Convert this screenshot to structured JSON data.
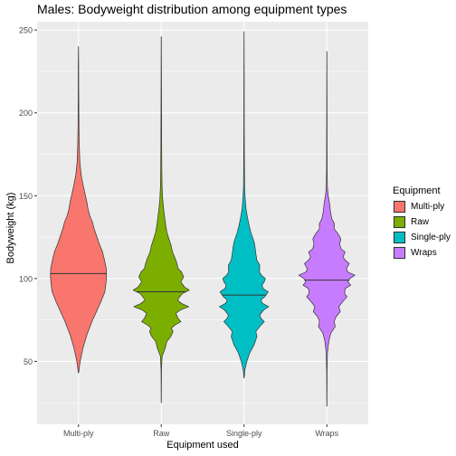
{
  "chart_data": {
    "type": "violin",
    "title": "Males: Bodyweight distribution among equipment types",
    "xlabel": "Equipment used",
    "ylabel": "Bodyweight (kg)",
    "categories": [
      "Multi-ply",
      "Raw",
      "Single-ply",
      "Wraps"
    ],
    "ylim": [
      12,
      255
    ],
    "yticks": [
      50,
      100,
      150,
      200,
      250
    ],
    "grid": true,
    "legend": {
      "title": "Equipment",
      "position": "right",
      "entries": [
        "Multi-ply",
        "Raw",
        "Single-ply",
        "Wraps"
      ]
    },
    "colors": [
      "#F8766D",
      "#7CAE00",
      "#00BFC4",
      "#C77CFF"
    ],
    "series": [
      {
        "name": "Multi-ply",
        "min": 43,
        "max": 240,
        "median": 103,
        "profile": [
          [
            43,
            0.004
          ],
          [
            50,
            0.06
          ],
          [
            58,
            0.16
          ],
          [
            66,
            0.3
          ],
          [
            74,
            0.48
          ],
          [
            80,
            0.64
          ],
          [
            86,
            0.8
          ],
          [
            92,
            0.94
          ],
          [
            97,
            0.98
          ],
          [
            101,
            1.0
          ],
          [
            106,
            0.99
          ],
          [
            111,
            0.93
          ],
          [
            116,
            0.86
          ],
          [
            121,
            0.74
          ],
          [
            126,
            0.64
          ],
          [
            130,
            0.56
          ],
          [
            134,
            0.5
          ],
          [
            138,
            0.4
          ],
          [
            142,
            0.34
          ],
          [
            146,
            0.3
          ],
          [
            150,
            0.25
          ],
          [
            156,
            0.17
          ],
          [
            162,
            0.1
          ],
          [
            170,
            0.05
          ],
          [
            180,
            0.028
          ],
          [
            190,
            0.018
          ],
          [
            200,
            0.012
          ],
          [
            215,
            0.008
          ],
          [
            230,
            0.006
          ],
          [
            240,
            0.002
          ]
        ]
      },
      {
        "name": "Raw",
        "min": 25,
        "max": 246,
        "median": 92,
        "profile": [
          [
            25,
            0.003
          ],
          [
            45,
            0.008
          ],
          [
            53,
            0.03
          ],
          [
            58,
            0.14
          ],
          [
            62,
            0.2
          ],
          [
            65,
            0.34
          ],
          [
            68,
            0.42
          ],
          [
            70,
            0.36
          ],
          [
            72,
            0.5
          ],
          [
            74,
            0.7
          ],
          [
            76,
            0.6
          ],
          [
            79,
            0.52
          ],
          [
            81,
            0.68
          ],
          [
            83,
            0.98
          ],
          [
            85,
            0.72
          ],
          [
            87,
            0.58
          ],
          [
            89,
            0.66
          ],
          [
            91,
            0.76
          ],
          [
            93,
            1.0
          ],
          [
            95,
            0.82
          ],
          [
            98,
            0.7
          ],
          [
            101,
            0.8
          ],
          [
            104,
            0.72
          ],
          [
            106,
            0.6
          ],
          [
            109,
            0.56
          ],
          [
            112,
            0.5
          ],
          [
            116,
            0.4
          ],
          [
            120,
            0.35
          ],
          [
            124,
            0.27
          ],
          [
            128,
            0.2
          ],
          [
            132,
            0.16
          ],
          [
            137,
            0.12
          ],
          [
            142,
            0.085
          ],
          [
            148,
            0.05
          ],
          [
            155,
            0.03
          ],
          [
            165,
            0.02
          ],
          [
            180,
            0.014
          ],
          [
            200,
            0.01
          ],
          [
            225,
            0.006
          ],
          [
            246,
            0.003
          ]
        ]
      },
      {
        "name": "Single-ply",
        "min": 40,
        "max": 249,
        "median": 90,
        "profile": [
          [
            40,
            0.004
          ],
          [
            45,
            0.03
          ],
          [
            50,
            0.1
          ],
          [
            55,
            0.2
          ],
          [
            60,
            0.36
          ],
          [
            65,
            0.46
          ],
          [
            68,
            0.42
          ],
          [
            71,
            0.56
          ],
          [
            74,
            0.72
          ],
          [
            76,
            0.6
          ],
          [
            78,
            0.56
          ],
          [
            81,
            0.7
          ],
          [
            83,
            0.88
          ],
          [
            85,
            0.66
          ],
          [
            87,
            0.6
          ],
          [
            89,
            0.74
          ],
          [
            92,
            0.86
          ],
          [
            94,
            0.68
          ],
          [
            96,
            0.64
          ],
          [
            98,
            0.72
          ],
          [
            100,
            0.76
          ],
          [
            102,
            0.62
          ],
          [
            104,
            0.55
          ],
          [
            108,
            0.56
          ],
          [
            111,
            0.46
          ],
          [
            115,
            0.42
          ],
          [
            118,
            0.4
          ],
          [
            122,
            0.36
          ],
          [
            125,
            0.3
          ],
          [
            128,
            0.24
          ],
          [
            132,
            0.18
          ],
          [
            137,
            0.12
          ],
          [
            142,
            0.07
          ],
          [
            148,
            0.04
          ],
          [
            155,
            0.02
          ],
          [
            170,
            0.012
          ],
          [
            190,
            0.008
          ],
          [
            220,
            0.006
          ],
          [
            249,
            0.002
          ]
        ]
      },
      {
        "name": "Wraps",
        "min": 23,
        "max": 237,
        "median": 99,
        "profile": [
          [
            23,
            0.003
          ],
          [
            45,
            0.008
          ],
          [
            55,
            0.02
          ],
          [
            62,
            0.07
          ],
          [
            67,
            0.14
          ],
          [
            71,
            0.3
          ],
          [
            74,
            0.26
          ],
          [
            77,
            0.33
          ],
          [
            80,
            0.48
          ],
          [
            83,
            0.43
          ],
          [
            86,
            0.56
          ],
          [
            89,
            0.72
          ],
          [
            91,
            0.63
          ],
          [
            94,
            0.66
          ],
          [
            96,
            0.85
          ],
          [
            98,
            0.75
          ],
          [
            100,
            0.82
          ],
          [
            102,
            1.0
          ],
          [
            104,
            0.74
          ],
          [
            106,
            0.7
          ],
          [
            109,
            0.8
          ],
          [
            111,
            0.66
          ],
          [
            113,
            0.58
          ],
          [
            116,
            0.65
          ],
          [
            118,
            0.5
          ],
          [
            121,
            0.46
          ],
          [
            124,
            0.5
          ],
          [
            127,
            0.4
          ],
          [
            130,
            0.26
          ],
          [
            133,
            0.27
          ],
          [
            136,
            0.18
          ],
          [
            140,
            0.13
          ],
          [
            145,
            0.1
          ],
          [
            150,
            0.05
          ],
          [
            155,
            0.02
          ],
          [
            165,
            0.01
          ],
          [
            180,
            0.008
          ],
          [
            200,
            0.006
          ],
          [
            220,
            0.004
          ],
          [
            237,
            0.002
          ]
        ]
      }
    ]
  }
}
